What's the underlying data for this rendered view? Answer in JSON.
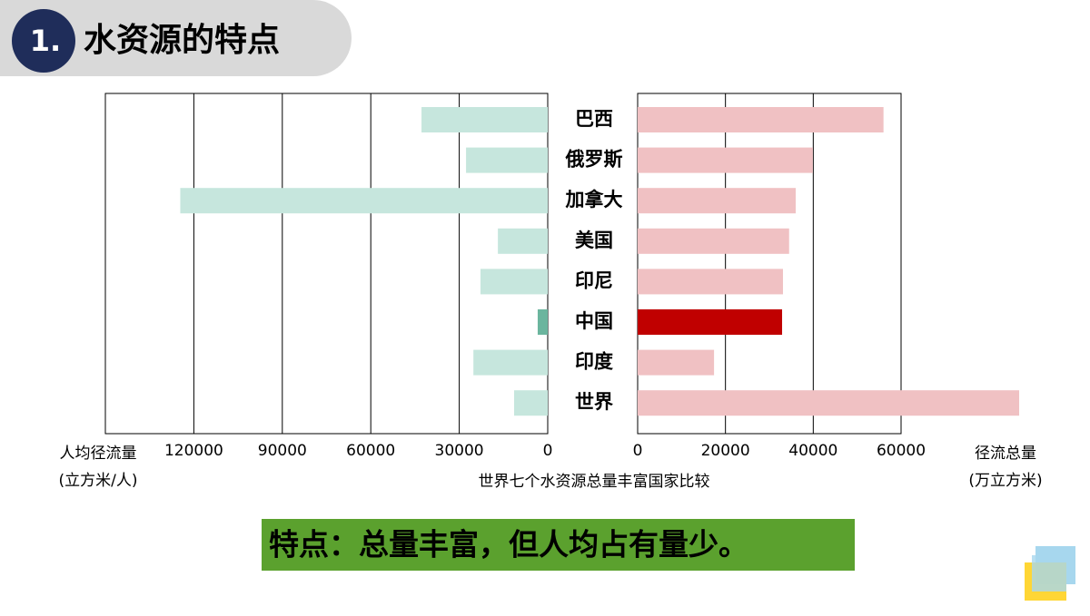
{
  "header": {
    "number": "1.",
    "title": "水资源的特点"
  },
  "chart_data": {
    "type": "butterfly",
    "title": "世界七个水资源总量丰富国家比较",
    "categories": [
      "巴西",
      "俄罗斯",
      "加拿大",
      "美国",
      "印尼",
      "中国",
      "印度",
      "世界"
    ],
    "series": [
      {
        "axis_label": [
          "人均径流量",
          "(立方米/人)"
        ],
        "side": "left",
        "values": [
          42800,
          27700,
          124600,
          16900,
          22800,
          3400,
          25200,
          11400
        ],
        "colors": [
          "#c6e6dd",
          "#c6e6dd",
          "#c6e6dd",
          "#c6e6dd",
          "#c6e6dd",
          "#6bb59e",
          "#c6e6dd",
          "#c6e6dd"
        ],
        "xlim": [
          0,
          150000
        ],
        "xticks": [
          0,
          30000,
          60000,
          90000,
          120000
        ]
      },
      {
        "axis_label": [
          "径流总量",
          "(万立方米)"
        ],
        "side": "right",
        "values": [
          56000,
          39900,
          36000,
          34500,
          33100,
          32900,
          17400,
          86900
        ],
        "colors": [
          "#f0c1c3",
          "#f0c1c3",
          "#f0c1c3",
          "#f0c1c3",
          "#f0c1c3",
          "#c00000",
          "#f0c1c3",
          "#f0c1c3"
        ],
        "xlim": [
          0,
          60000
        ],
        "xticks": [
          0,
          20000,
          40000,
          60000
        ]
      }
    ],
    "grid": true
  },
  "caption": "特点：总量丰富，但人均占有量少。"
}
